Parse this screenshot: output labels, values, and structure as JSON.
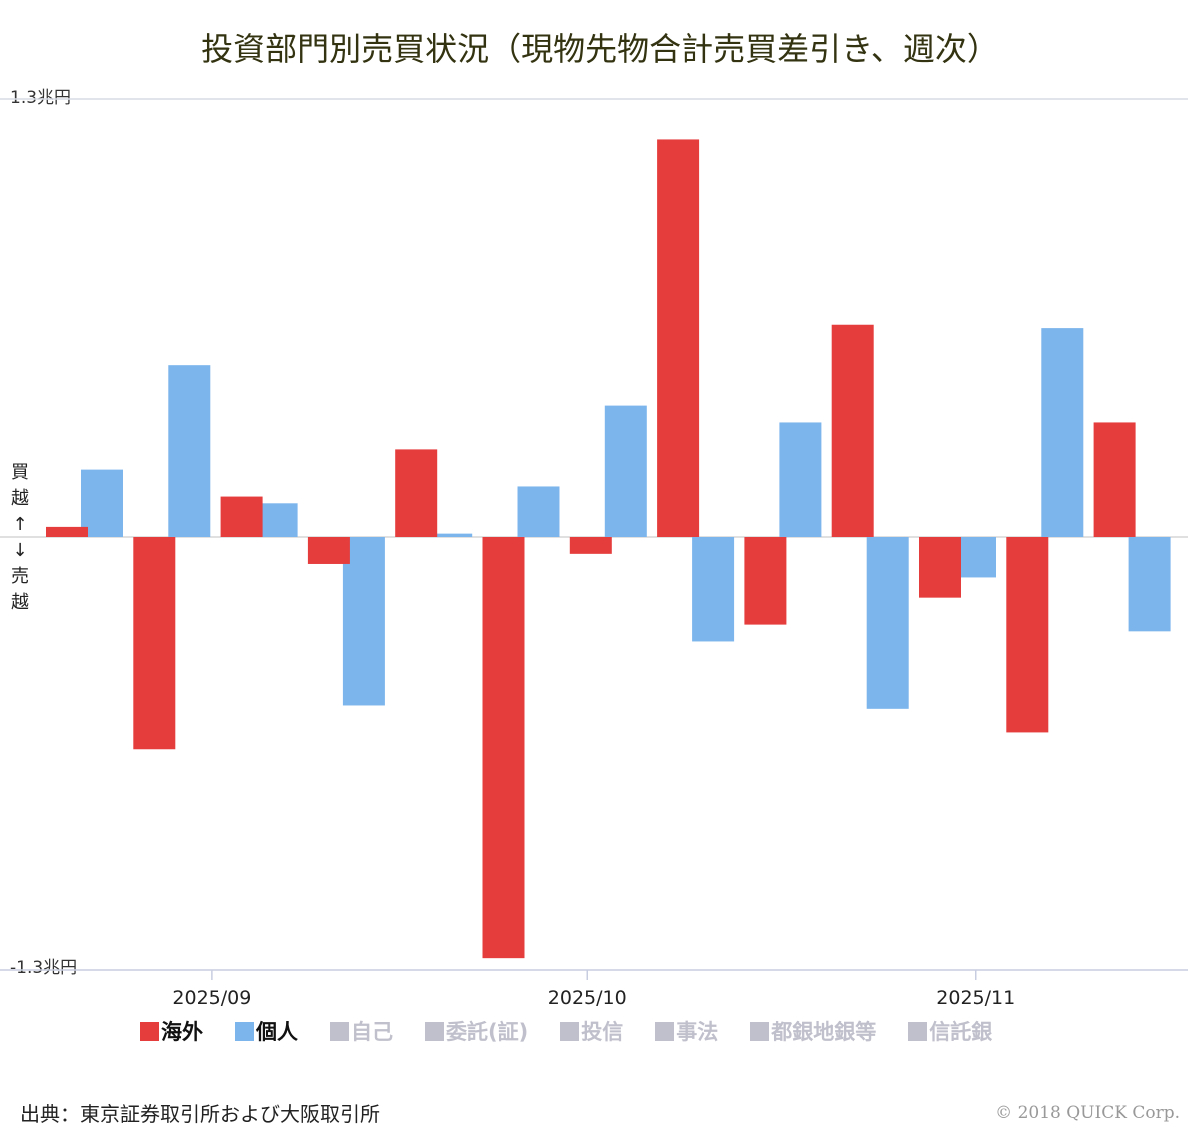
{
  "title": "投資部門別売買状況（現物先物合計売買差引き、週次）",
  "y_top_label": "1.3兆円",
  "y_bottom_label": "-1.3兆円",
  "side_label": [
    "買",
    "越",
    "↑",
    "↓",
    "売",
    "越"
  ],
  "source": "出典：東京証券取引所および大阪取引所",
  "copyright": "© 2018 QUICK Corp.",
  "chart_data": {
    "type": "bar",
    "title": "投資部門別売買状況（現物先物合計売買差引き、週次）",
    "ylabel": "兆円",
    "ylim": [
      -1.3,
      1.3
    ],
    "x_ticks": [
      {
        "label": "2025/09",
        "week": 1.9
      },
      {
        "label": "2025/10",
        "week": 6.2
      },
      {
        "label": "2025/11",
        "week": 10.65
      }
    ],
    "series": [
      {
        "name": "海外",
        "color": "#e53c3c",
        "active": true,
        "values": [
          0.03,
          -0.63,
          0.12,
          -0.08,
          0.26,
          -1.25,
          -0.05,
          1.18,
          -0.26,
          0.63,
          -0.18,
          -0.58,
          0.34
        ]
      },
      {
        "name": "個人",
        "color": "#7cb5ec",
        "active": true,
        "values": [
          0.2,
          0.51,
          0.1,
          -0.5,
          0.01,
          0.15,
          0.39,
          -0.31,
          0.34,
          -0.51,
          -0.12,
          0.62,
          -0.28
        ]
      }
    ],
    "legend": [
      {
        "name": "海外",
        "color": "#e53c3c",
        "active": true
      },
      {
        "name": "個人",
        "color": "#7cb5ec",
        "active": true
      },
      {
        "name": "自己",
        "color": "#c0c0cc",
        "active": false
      },
      {
        "name": "委託(証)",
        "color": "#c0c0cc",
        "active": false
      },
      {
        "name": "投信",
        "color": "#c0c0cc",
        "active": false
      },
      {
        "name": "事法",
        "color": "#c0c0cc",
        "active": false
      },
      {
        "name": "都銀地銀等",
        "color": "#c0c0cc",
        "active": false
      },
      {
        "name": "信託銀",
        "color": "#c0c0cc",
        "active": false
      }
    ]
  }
}
